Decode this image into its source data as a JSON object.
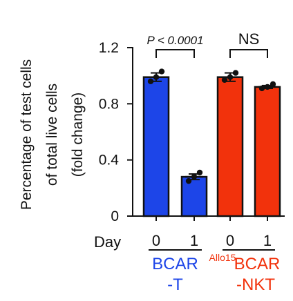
{
  "chart_data": {
    "type": "bar",
    "ylabel_lines": [
      "Percentage of test cells",
      "of total live cells",
      "(fold change)"
    ],
    "xlabel": "Day",
    "yticks": [
      "0",
      "0.4",
      "0.8",
      "1.2"
    ],
    "ylim": [
      0,
      1.2
    ],
    "categories": [
      "0",
      "1",
      "0",
      "1"
    ],
    "values": [
      0.99,
      0.28,
      0.99,
      0.92
    ],
    "errors": [
      0.03,
      0.02,
      0.03,
      0.01
    ],
    "points": [
      [
        0.96,
        0.99,
        1.03
      ],
      [
        0.25,
        0.28,
        0.31
      ],
      [
        0.97,
        0.99,
        1.02
      ],
      [
        0.91,
        0.92,
        0.94
      ]
    ],
    "bar_colors": [
      "#1d45e8",
      "#1d45e8",
      "#f2320c",
      "#f2320c"
    ],
    "groups": [
      {
        "line1": "BCAR",
        "line2": "-T",
        "color": "#1d45e8"
      },
      {
        "superscript": "Allo15",
        "line1": "BCAR",
        "line2": "-NKT",
        "color": "#f2320c"
      }
    ],
    "annotations": [
      {
        "text": "P < 0.0001",
        "from": 0,
        "to": 1
      },
      {
        "text": "NS",
        "from": 2,
        "to": 3
      }
    ]
  }
}
